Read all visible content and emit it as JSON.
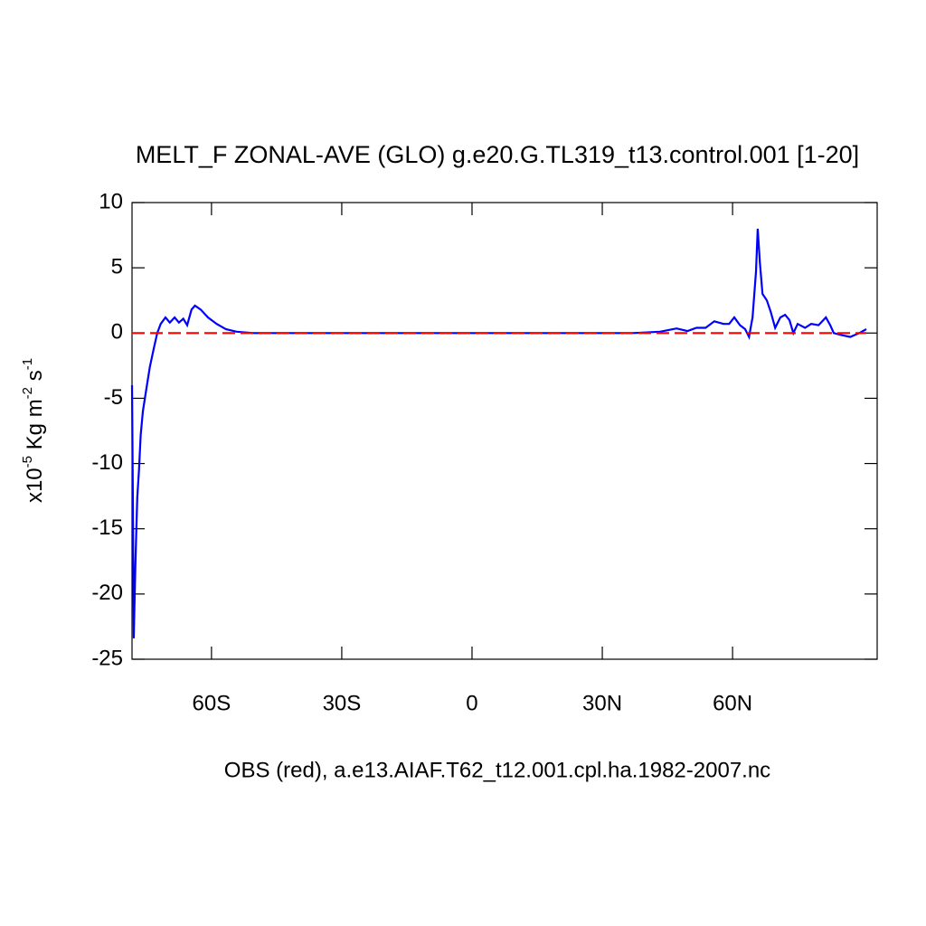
{
  "chart_data": {
    "type": "line",
    "title": "MELT_F ZONAL-AVE (GLO) g.e20.G.TL319_t13.control.001 [1-20]",
    "xlabel": "OBS (red), a.e13.AIAF.T62_t12.001.cpl.ha.1982-2007.nc",
    "ylabel": [
      "x10",
      "-5",
      " Kg m",
      "-2",
      " s",
      "-1"
    ],
    "xlim": [
      -78.3,
      93.3
    ],
    "ylim": [
      -25,
      10
    ],
    "xticks": [
      {
        "value": -60,
        "label": "60S"
      },
      {
        "value": -30,
        "label": "30S"
      },
      0,
      {
        "value": 30,
        "label": "30N"
      },
      {
        "value": 60,
        "label": "60N"
      }
    ],
    "yticks": [
      10,
      5,
      0,
      -5,
      -10,
      -15,
      -20,
      -25
    ],
    "series": [
      {
        "color": "#0000ff",
        "dash": false,
        "x": [
          -78.3,
          -78.1,
          -77.9,
          -77.5,
          -77.1,
          -76.7,
          -76.3,
          -75.8,
          -75.0,
          -74.2,
          -73.3,
          -72.5,
          -71.7,
          -70.6,
          -69.6,
          -68.5,
          -67.5,
          -66.5,
          -65.6,
          -64.6,
          -63.8,
          -62.5,
          -60.8,
          -58.8,
          -56.7,
          -54.2,
          -50.4,
          0,
          37.1,
          43.3,
          47.1,
          49.6,
          51.7,
          53.8,
          55.8,
          57.9,
          59.2,
          60.4,
          61.7,
          62.9,
          63.8,
          64.6,
          65.4,
          65.8,
          66.3,
          66.9,
          67.9,
          68.8,
          69.8,
          71.0,
          72.1,
          73.1,
          74.0,
          75.0,
          76.7,
          78.1,
          79.8,
          81.5,
          82.5,
          83.3,
          85.0,
          87.1,
          89.2,
          90.8
        ],
        "values": [
          -4.0,
          -13.3,
          -23.4,
          -17.5,
          -12.6,
          -10.5,
          -7.8,
          -6.0,
          -4.3,
          -2.6,
          -1.2,
          0,
          0.7,
          1.2,
          0.8,
          1.2,
          0.8,
          1.1,
          0.6,
          1.8,
          2.1,
          1.8,
          1.2,
          0.7,
          0.3,
          0.1,
          0,
          0,
          0,
          0.1,
          0.35,
          0.15,
          0.4,
          0.4,
          0.9,
          0.7,
          0.7,
          1.2,
          0.6,
          0.3,
          -0.3,
          1.2,
          4.7,
          8.0,
          5.4,
          3.0,
          2.5,
          1.6,
          0.4,
          1.2,
          1.4,
          1.0,
          0,
          0.7,
          0.4,
          0.7,
          0.6,
          1.2,
          0.6,
          0,
          -0.15,
          -0.3,
          0,
          0.3
        ]
      },
      {
        "color": "#ff0000",
        "dash": true,
        "x": [
          -78.3,
          90.8
        ],
        "values": [
          0,
          0
        ]
      }
    ]
  }
}
